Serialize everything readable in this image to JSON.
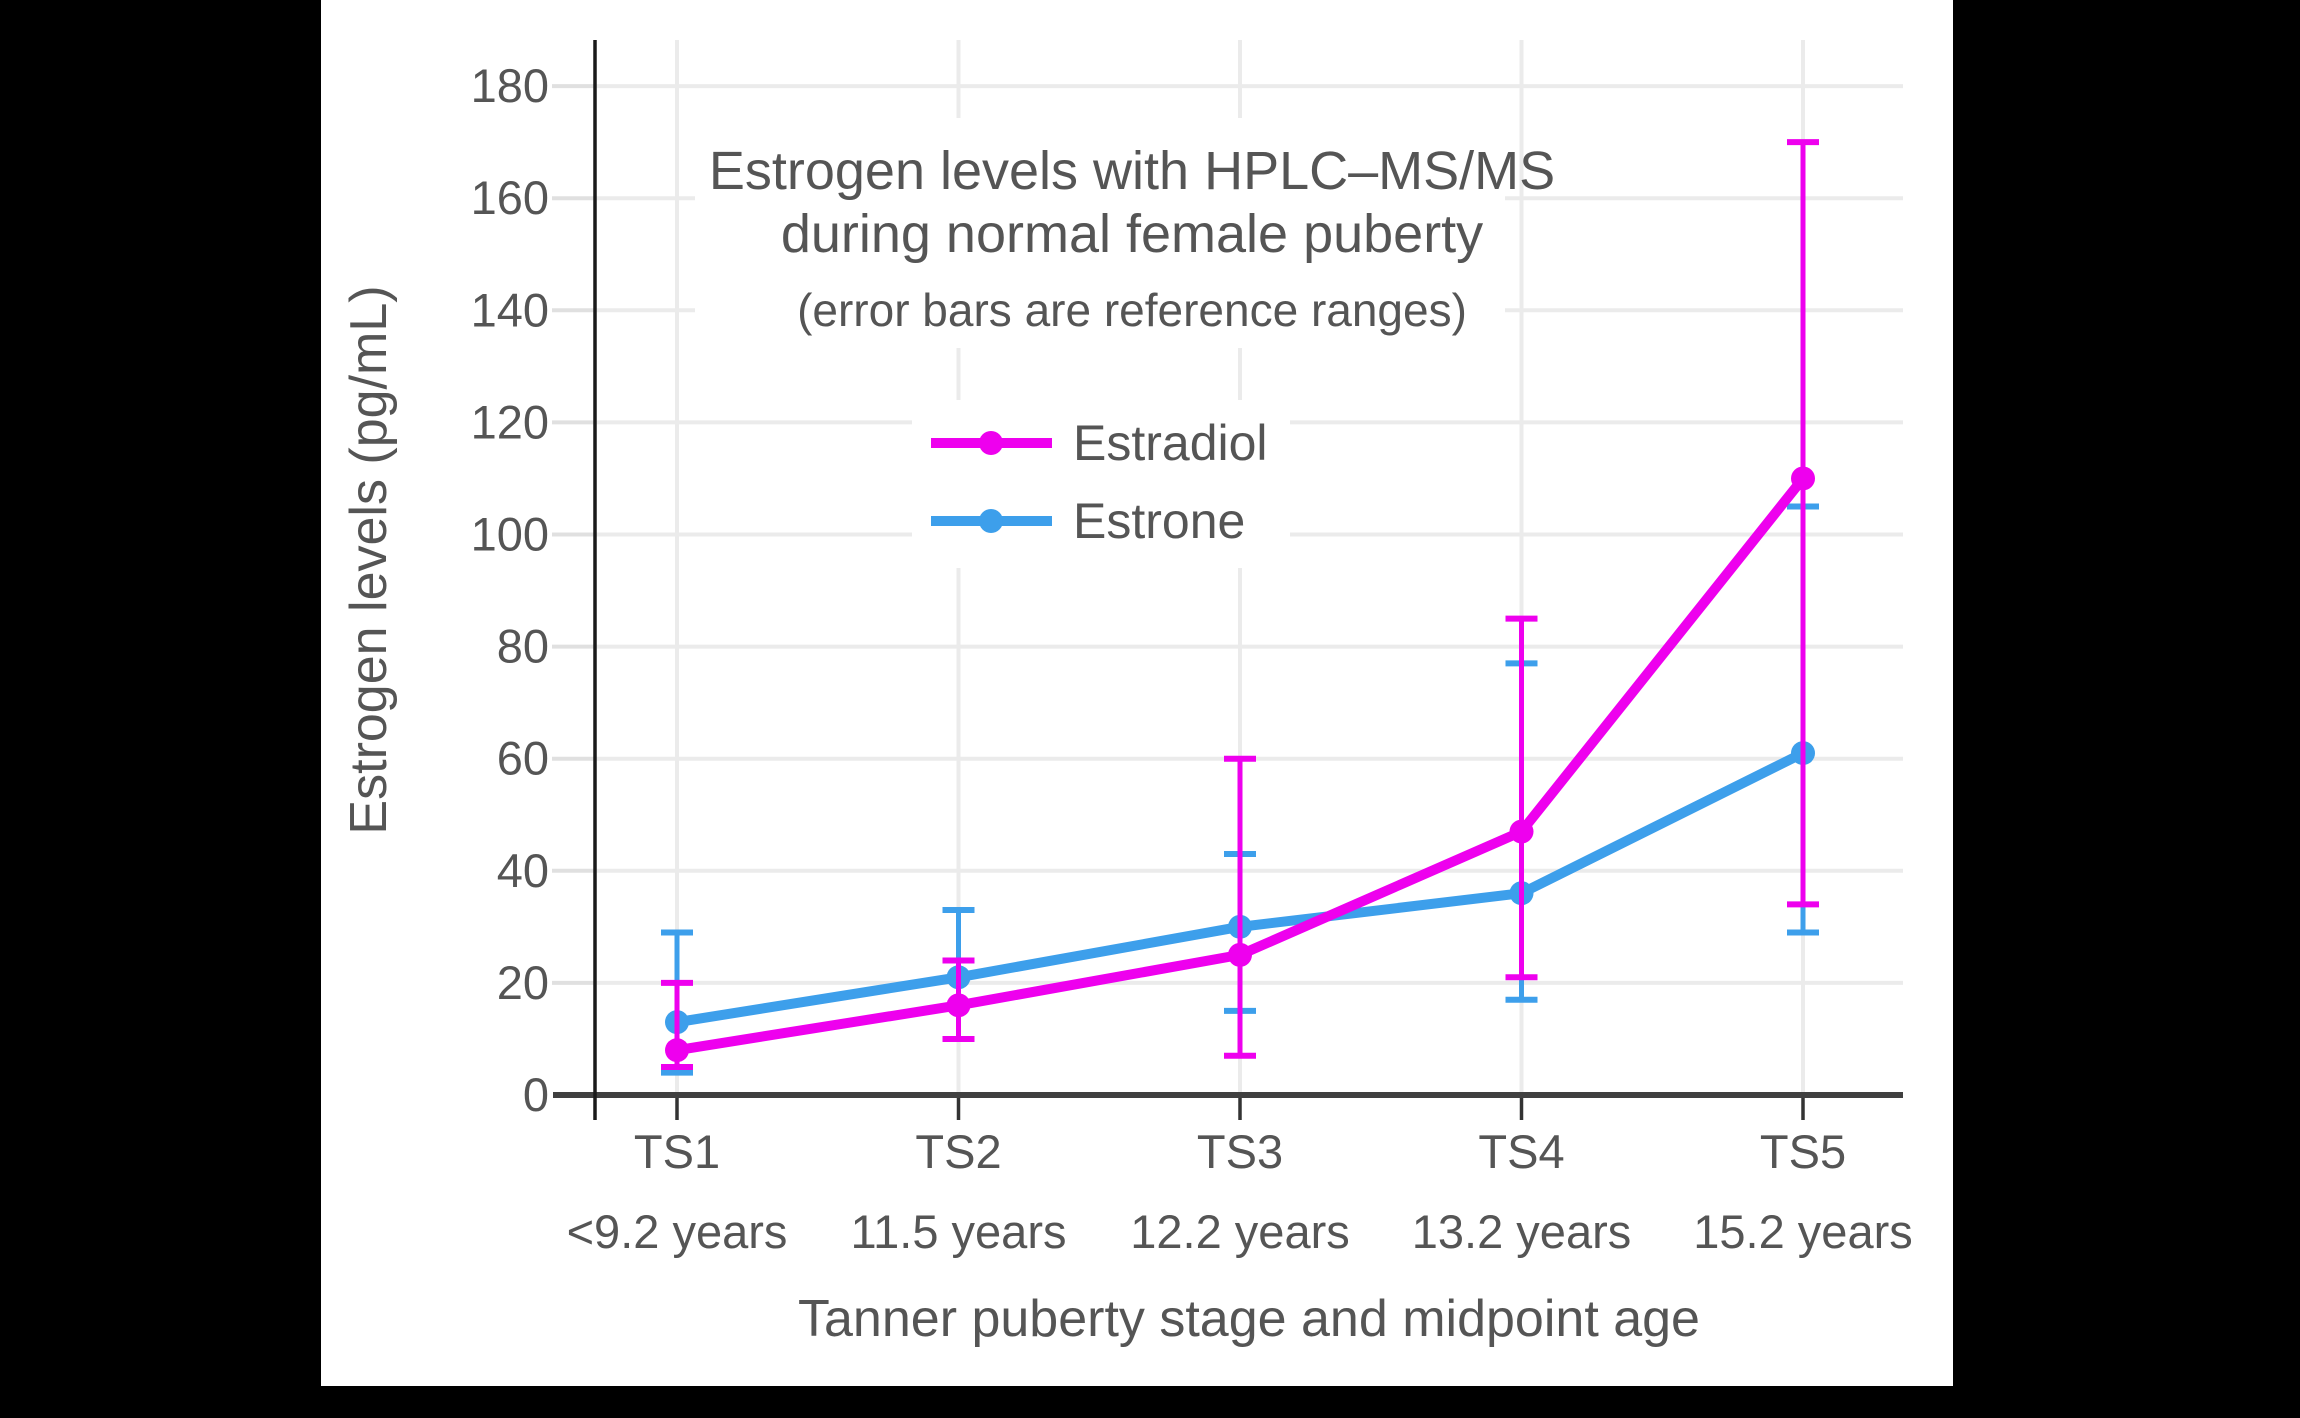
{
  "chart_data": {
    "type": "line",
    "title_line1": "Estrogen levels with HPLC–MS/MS",
    "title_line2": "during normal female puberty",
    "subtitle": "(error bars are reference ranges)",
    "ylabel": "Estrogen levels (pg/mL)",
    "xlabel": "Tanner puberty stage and midpoint age",
    "categories": [
      "TS1",
      "TS2",
      "TS3",
      "TS4",
      "TS5"
    ],
    "category_ages": [
      "<9.2 years",
      "11.5 years",
      "12.2 years",
      "13.2 years",
      "15.2 years"
    ],
    "yticks": [
      0,
      20,
      40,
      60,
      80,
      100,
      120,
      140,
      160,
      180
    ],
    "ylim": [
      0,
      188
    ],
    "grid": true,
    "legend_position": "inside-upper-center",
    "error_bars": "reference ranges",
    "series": [
      {
        "name": "Estradiol",
        "color": "#EE00EE",
        "values": [
          8,
          16,
          25,
          47,
          110
        ],
        "error_low": [
          5,
          10,
          7,
          21,
          34
        ],
        "error_high": [
          20,
          24,
          60,
          85,
          170
        ]
      },
      {
        "name": "Estrone",
        "color": "#3D9FEB",
        "values": [
          13,
          21,
          30,
          36,
          61
        ],
        "error_low": [
          4,
          10,
          15,
          17,
          29
        ],
        "error_high": [
          29,
          33,
          43,
          77,
          105
        ]
      }
    ],
    "colors": {
      "estradiol": "#EE00EE",
      "estrone": "#3D9FEB",
      "text": "#555555",
      "grid": "#EBEBEB",
      "x_axis": "#404040",
      "y_axis": "#1A1A1A",
      "panel": "#FFFFFF",
      "letterbox": "#000000"
    }
  }
}
